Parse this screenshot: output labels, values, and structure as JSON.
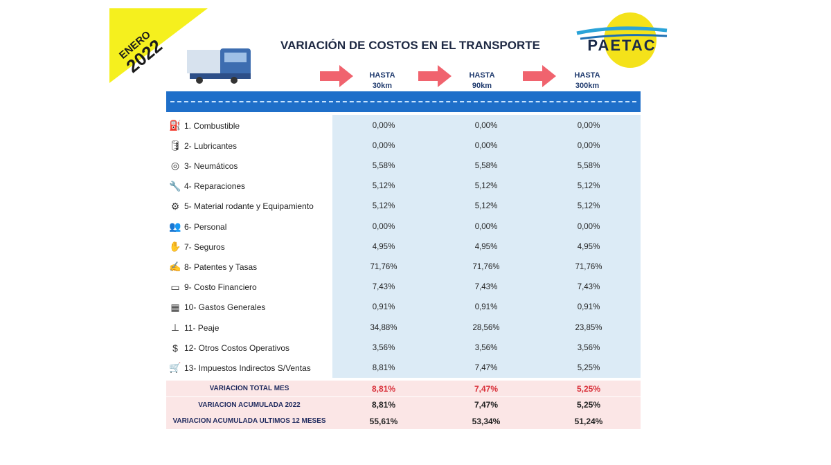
{
  "badge": {
    "month": "ENERO",
    "year": "2022",
    "color": "#f5f01e"
  },
  "title": "VARIACIÓN DE COSTOS EN EL TRANSPORTE",
  "logo": "PAETAC",
  "columns": [
    {
      "top": "HASTA",
      "bottom": "30km"
    },
    {
      "top": "HASTA",
      "bottom": "90km"
    },
    {
      "top": "HASTA",
      "bottom": "300km"
    }
  ],
  "rows": [
    {
      "icon": "fuel-pump-icon",
      "glyph": "⛽",
      "label": "1. Combustible",
      "values": [
        "0,00%",
        "0,00%",
        "0,00%"
      ]
    },
    {
      "icon": "oil-can-icon",
      "glyph": "🛢",
      "label": "2- Lubricantes",
      "values": [
        "0,00%",
        "0,00%",
        "0,00%"
      ]
    },
    {
      "icon": "tire-icon",
      "glyph": "◎",
      "label": "3- Neumáticos",
      "values": [
        "5,58%",
        "5,58%",
        "5,58%"
      ]
    },
    {
      "icon": "wrench-icon",
      "glyph": "🔧",
      "label": "4- Reparaciones",
      "values": [
        "5,12%",
        "5,12%",
        "5,12%"
      ]
    },
    {
      "icon": "gear-icon",
      "glyph": "⚙",
      "label": "5- Material rodante y Equipamiento",
      "values": [
        "5,12%",
        "5,12%",
        "5,12%"
      ]
    },
    {
      "icon": "people-icon",
      "glyph": "👥",
      "label": "6- Personal",
      "values": [
        "0,00%",
        "0,00%",
        "0,00%"
      ]
    },
    {
      "icon": "hand-icon",
      "glyph": "✋",
      "label": "7- Seguros",
      "values": [
        "4,95%",
        "4,95%",
        "4,95%"
      ]
    },
    {
      "icon": "document-icon",
      "glyph": "✍",
      "label": "8- Patentes y Tasas",
      "values": [
        "71,76%",
        "71,76%",
        "71,76%"
      ]
    },
    {
      "icon": "cost-icon",
      "glyph": "▭",
      "label": "9- Costo Financiero",
      "values": [
        "7,43%",
        "7,43%",
        "7,43%"
      ]
    },
    {
      "icon": "calculator-icon",
      "glyph": "▦",
      "label": "10- Gastos Generales",
      "values": [
        "0,91%",
        "0,91%",
        "0,91%"
      ]
    },
    {
      "icon": "toll-barrier-icon",
      "glyph": "⊥",
      "label": "11- Peaje",
      "values": [
        "34,88%",
        "28,56%",
        "23,85%"
      ]
    },
    {
      "icon": "dollar-icon",
      "glyph": "$",
      "label": "12- Otros Costos Operativos",
      "values": [
        "3,56%",
        "3,56%",
        "3,56%"
      ]
    },
    {
      "icon": "cart-icon",
      "glyph": "🛒",
      "label": "13- Impuestos Indirectos S/Ventas",
      "values": [
        "8,81%",
        "7,47%",
        "5,25%"
      ]
    }
  ],
  "summary": [
    {
      "label": "VARIACION TOTAL MES",
      "values": [
        "8,81%",
        "7,47%",
        "5,25%"
      ],
      "highlight": "#d9303a"
    },
    {
      "label": "VARIACION ACUMULADA 2022",
      "values": [
        "8,81%",
        "7,47%",
        "5,25%"
      ]
    },
    {
      "label": "VARIACION ACUMULADA ULTIMOS 12 MESES",
      "values": [
        "55,61%",
        "53,34%",
        "51,24%"
      ]
    }
  ]
}
